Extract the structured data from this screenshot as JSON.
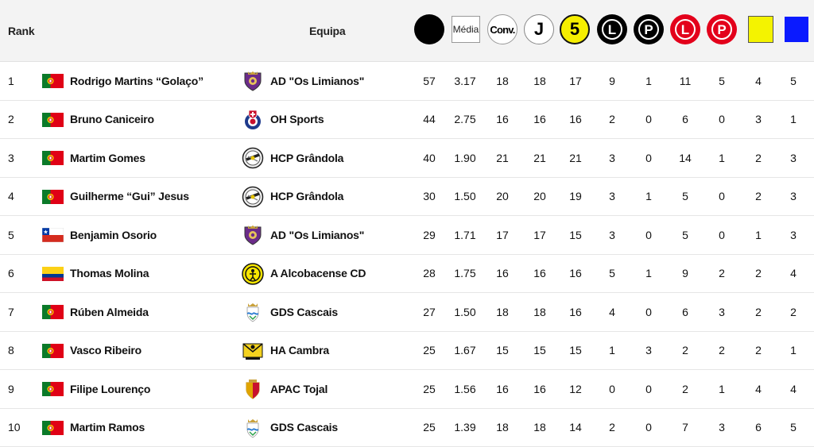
{
  "header": {
    "rank_label": "Rank",
    "team_label": "Equipa",
    "icons": [
      {
        "name": "goals-icon",
        "kind": "black-circle",
        "text": ""
      },
      {
        "name": "media-icon",
        "kind": "media-square",
        "text": "Média"
      },
      {
        "name": "conv-icon",
        "kind": "white-circle",
        "text": "Conv."
      },
      {
        "name": "games-icon",
        "kind": "j-circle",
        "text": "J"
      },
      {
        "name": "five-icon",
        "kind": "five-circle",
        "text": "5"
      },
      {
        "name": "black-l-icon",
        "kind": "black-l",
        "text": "L"
      },
      {
        "name": "black-p-icon",
        "kind": "black-p",
        "text": "P"
      },
      {
        "name": "red-l-icon",
        "kind": "red-l",
        "text": "L"
      },
      {
        "name": "red-p-icon",
        "kind": "red-p",
        "text": "P"
      },
      {
        "name": "yellow-card-icon",
        "kind": "yellow-square",
        "text": ""
      },
      {
        "name": "blue-card-icon",
        "kind": "blue-square",
        "text": ""
      }
    ]
  },
  "rows": [
    {
      "rank": "1",
      "flag": "portugal",
      "player": "Rodrigo Martins “Golaço”",
      "crest": "limianos",
      "team": "AD \"Os Limianos\"",
      "stats": [
        "57",
        "3.17",
        "18",
        "18",
        "17",
        "9",
        "1",
        "11",
        "5",
        "4",
        "5"
      ]
    },
    {
      "rank": "2",
      "flag": "portugal",
      "player": "Bruno Caniceiro",
      "crest": "ohsports",
      "team": "OH Sports",
      "stats": [
        "44",
        "2.75",
        "16",
        "16",
        "16",
        "2",
        "0",
        "6",
        "0",
        "3",
        "1"
      ]
    },
    {
      "rank": "3",
      "flag": "portugal",
      "player": "Martim Gomes",
      "crest": "grandola",
      "team": "HCP Grândola",
      "stats": [
        "40",
        "1.90",
        "21",
        "21",
        "21",
        "3",
        "0",
        "14",
        "1",
        "2",
        "3"
      ]
    },
    {
      "rank": "4",
      "flag": "portugal",
      "player": "Guilherme “Gui” Jesus",
      "crest": "grandola",
      "team": "HCP Grândola",
      "stats": [
        "30",
        "1.50",
        "20",
        "20",
        "19",
        "3",
        "1",
        "5",
        "0",
        "2",
        "3"
      ]
    },
    {
      "rank": "5",
      "flag": "chile",
      "player": "Benjamin Osorio",
      "crest": "limianos",
      "team": "AD \"Os Limianos\"",
      "stats": [
        "29",
        "1.71",
        "17",
        "17",
        "15",
        "3",
        "0",
        "5",
        "0",
        "1",
        "3"
      ]
    },
    {
      "rank": "6",
      "flag": "colombia",
      "player": "Thomas Molina",
      "crest": "alcobacense",
      "team": "A Alcobacense CD",
      "stats": [
        "28",
        "1.75",
        "16",
        "16",
        "16",
        "5",
        "1",
        "9",
        "2",
        "2",
        "4"
      ]
    },
    {
      "rank": "7",
      "flag": "portugal",
      "player": "Rúben Almeida",
      "crest": "cascais",
      "team": "GDS Cascais",
      "stats": [
        "27",
        "1.50",
        "18",
        "18",
        "16",
        "4",
        "0",
        "6",
        "3",
        "2",
        "2"
      ]
    },
    {
      "rank": "8",
      "flag": "portugal",
      "player": "Vasco Ribeiro",
      "crest": "cambra",
      "team": "HA Cambra",
      "stats": [
        "25",
        "1.67",
        "15",
        "15",
        "15",
        "1",
        "3",
        "2",
        "2",
        "2",
        "1"
      ]
    },
    {
      "rank": "9",
      "flag": "portugal",
      "player": "Filipe Lourenço",
      "crest": "tojal",
      "team": "APAC Tojal",
      "stats": [
        "25",
        "1.56",
        "16",
        "16",
        "12",
        "0",
        "0",
        "2",
        "1",
        "4",
        "4"
      ]
    },
    {
      "rank": "10",
      "flag": "portugal",
      "player": "Martim Ramos",
      "crest": "cascais",
      "team": "GDS Cascais",
      "stats": [
        "25",
        "1.39",
        "18",
        "18",
        "14",
        "2",
        "0",
        "7",
        "3",
        "6",
        "5"
      ]
    }
  ]
}
